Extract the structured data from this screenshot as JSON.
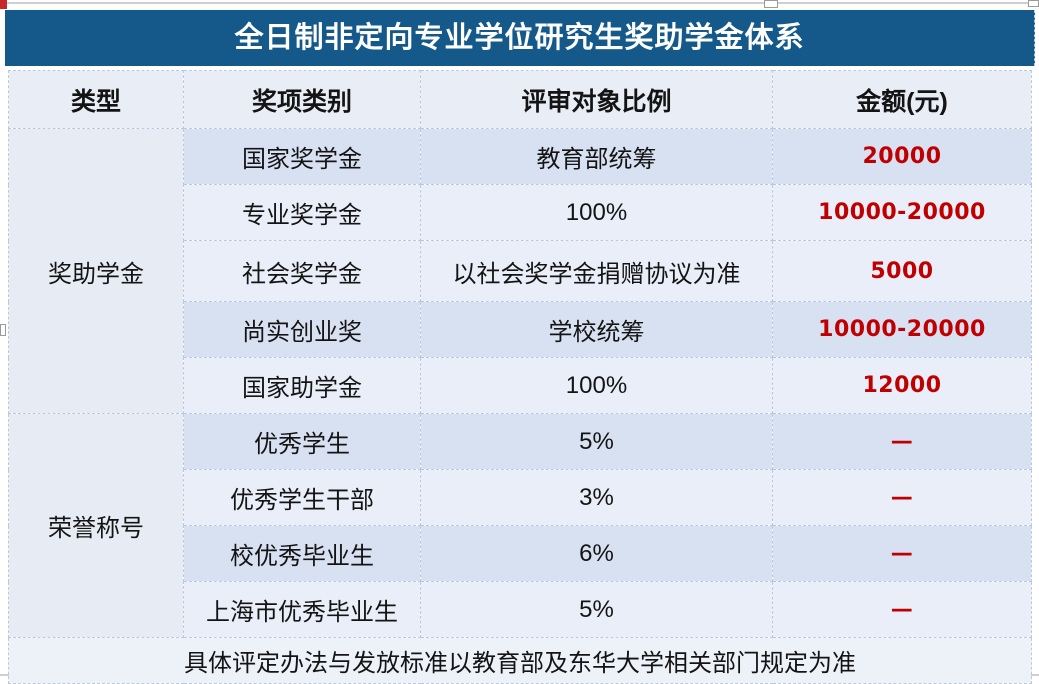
{
  "title": "全日制非定向专业学位研究生奖助学金体系",
  "table": {
    "headers": [
      "类型",
      "奖项类别",
      "评审对象比例",
      "金额(元)"
    ],
    "groups": [
      {
        "type": "奖助学金",
        "rows": [
          {
            "category": "国家奖学金",
            "ratio": "教育部统筹",
            "amount": "20000"
          },
          {
            "category": "专业奖学金",
            "ratio": "100%",
            "amount": "10000-20000"
          },
          {
            "category": "社会奖学金",
            "ratio": "以社会奖学金捐赠协议为准",
            "amount": "5000"
          },
          {
            "category": "尚实创业奖",
            "ratio": "学校统筹",
            "amount": "10000-20000"
          },
          {
            "category": "国家助学金",
            "ratio": "100%",
            "amount": "12000"
          }
        ]
      },
      {
        "type": "荣誉称号",
        "rows": [
          {
            "category": "优秀学生",
            "ratio": "5%",
            "amount": "—"
          },
          {
            "category": "优秀学生干部",
            "ratio": "3%",
            "amount": "—"
          },
          {
            "category": "校优秀毕业生",
            "ratio": "6%",
            "amount": "—"
          },
          {
            "category": "上海市优秀毕业生",
            "ratio": "5%",
            "amount": "—"
          }
        ]
      }
    ],
    "footer": "具体评定办法与发放标准以教育部及东华大学相关部门规定为准"
  },
  "colors": {
    "title_bg": "#15598b",
    "title_text": "#ffffff",
    "header_bg": "#e9edf6",
    "band_dark": "#d8e1f2",
    "band_light": "#eaeef8",
    "type_cell_bg": "#e7ebf4",
    "amount_red": "#c00000",
    "dashed_border": "#b9c9e2",
    "footer_bg": "#edf1f8",
    "corner_mark_red": "#c9252d"
  }
}
